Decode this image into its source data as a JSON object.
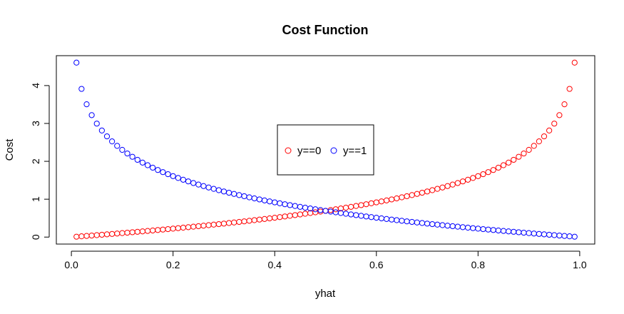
{
  "chart_data": {
    "type": "scatter",
    "title": "Cost Function",
    "xlabel": "yhat",
    "ylabel": "Cost",
    "xlim": [
      -0.0296,
      1.0296
    ],
    "ylim": [
      -0.1842,
      4.7894
    ],
    "xticks": [
      0.0,
      0.2,
      0.4,
      0.6,
      0.8,
      1.0
    ],
    "xtick_labels": [
      "0.0",
      "0.2",
      "0.4",
      "0.6",
      "0.8",
      "1.0"
    ],
    "yticks": [
      0,
      1,
      2,
      3,
      4
    ],
    "ytick_labels": [
      "0",
      "1",
      "2",
      "3",
      "4"
    ],
    "grid": false,
    "legend_position": "center",
    "x": [
      0.01,
      0.02,
      0.03,
      0.04,
      0.05,
      0.06,
      0.07,
      0.08,
      0.09,
      0.1,
      0.11,
      0.12,
      0.13,
      0.14,
      0.15,
      0.16,
      0.17,
      0.18,
      0.19,
      0.2,
      0.21,
      0.22,
      0.23,
      0.24,
      0.25,
      0.26,
      0.27,
      0.28,
      0.29,
      0.3,
      0.31,
      0.32,
      0.33,
      0.34,
      0.35,
      0.36,
      0.37,
      0.38,
      0.39,
      0.4,
      0.41,
      0.42,
      0.43,
      0.44,
      0.45,
      0.46,
      0.47,
      0.48,
      0.49,
      0.5,
      0.51,
      0.52,
      0.53,
      0.54,
      0.55,
      0.56,
      0.57,
      0.58,
      0.59,
      0.6,
      0.61,
      0.62,
      0.63,
      0.64,
      0.65,
      0.66,
      0.67,
      0.68,
      0.69,
      0.7,
      0.71,
      0.72,
      0.73,
      0.74,
      0.75,
      0.76,
      0.77,
      0.78,
      0.79,
      0.8,
      0.81,
      0.82,
      0.83,
      0.84,
      0.85,
      0.86,
      0.87,
      0.88,
      0.89,
      0.9,
      0.91,
      0.92,
      0.93,
      0.94,
      0.95,
      0.96,
      0.97,
      0.98,
      0.99
    ],
    "series": [
      {
        "name": "y==0",
        "color": "#ff0000",
        "values": [
          0.0101,
          0.0202,
          0.0305,
          0.0408,
          0.0513,
          0.0619,
          0.0726,
          0.0834,
          0.0943,
          0.1054,
          0.1165,
          0.1278,
          0.1393,
          0.1508,
          0.1625,
          0.1744,
          0.1863,
          0.1985,
          0.2107,
          0.2231,
          0.2357,
          0.2485,
          0.2614,
          0.2744,
          0.2877,
          0.3011,
          0.3147,
          0.3285,
          0.3425,
          0.3567,
          0.3711,
          0.3857,
          0.4005,
          0.4155,
          0.4308,
          0.4463,
          0.462,
          0.478,
          0.4943,
          0.5108,
          0.5276,
          0.5447,
          0.5621,
          0.5798,
          0.5978,
          0.6162,
          0.6349,
          0.6539,
          0.6733,
          0.6931,
          0.7133,
          0.734,
          0.755,
          0.7765,
          0.7985,
          0.821,
          0.844,
          0.8675,
          0.8916,
          0.9163,
          0.9416,
          0.9676,
          0.9943,
          1.0217,
          1.0498,
          1.0788,
          1.1087,
          1.1394,
          1.1712,
          1.204,
          1.2379,
          1.273,
          1.3093,
          1.3471,
          1.3863,
          1.4271,
          1.4697,
          1.5141,
          1.5606,
          1.6094,
          1.6607,
          1.7148,
          1.772,
          1.8326,
          1.8971,
          1.9661,
          2.0402,
          2.1203,
          2.2073,
          2.3026,
          2.4079,
          2.5257,
          2.6593,
          2.8134,
          2.9957,
          3.2189,
          3.5066,
          3.912,
          4.6052
        ]
      },
      {
        "name": "y==1",
        "color": "#0000ff",
        "values": [
          4.6052,
          3.912,
          3.5066,
          3.2189,
          2.9957,
          2.8134,
          2.6593,
          2.5257,
          2.4079,
          2.3026,
          2.2073,
          2.1203,
          2.0402,
          1.9661,
          1.8971,
          1.8326,
          1.772,
          1.7148,
          1.6607,
          1.6094,
          1.5606,
          1.5141,
          1.4697,
          1.4271,
          1.3863,
          1.3471,
          1.3093,
          1.273,
          1.2379,
          1.204,
          1.1712,
          1.1394,
          1.1087,
          1.0788,
          1.0498,
          1.0217,
          0.9943,
          0.9676,
          0.9416,
          0.9163,
          0.8916,
          0.8675,
          0.844,
          0.821,
          0.7985,
          0.7765,
          0.755,
          0.734,
          0.7133,
          0.6931,
          0.6733,
          0.6539,
          0.6349,
          0.6162,
          0.5978,
          0.5798,
          0.5621,
          0.5447,
          0.5276,
          0.5108,
          0.4943,
          0.478,
          0.462,
          0.4463,
          0.4308,
          0.4155,
          0.4005,
          0.3857,
          0.3711,
          0.3567,
          0.3425,
          0.3285,
          0.3147,
          0.3011,
          0.2877,
          0.2744,
          0.2614,
          0.2485,
          0.2357,
          0.2231,
          0.2107,
          0.1985,
          0.1863,
          0.1744,
          0.1625,
          0.1508,
          0.1393,
          0.1278,
          0.1165,
          0.1054,
          0.0943,
          0.0834,
          0.0726,
          0.0619,
          0.0513,
          0.0408,
          0.0305,
          0.0202,
          0.0101
        ]
      }
    ]
  }
}
